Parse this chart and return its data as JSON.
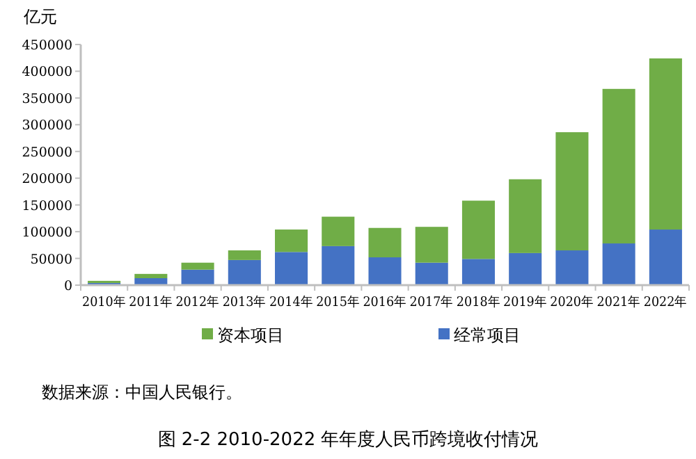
{
  "chart_data": {
    "type": "bar",
    "stacked": true,
    "title": "图 2-2 2010-2022 年年度人民币跨境收付情况",
    "ylabel": "亿元",
    "categories": [
      "2010年",
      "2011年",
      "2012年",
      "2013年",
      "2014年",
      "2015年",
      "2016年",
      "2017年",
      "2018年",
      "2019年",
      "2020年",
      "2021年",
      "2022年"
    ],
    "series": [
      {
        "name": "经常项目",
        "color": "#4472c4",
        "values": [
          4000,
          13000,
          29000,
          47000,
          62000,
          73000,
          52000,
          42000,
          49000,
          60000,
          65000,
          78000,
          104000
        ]
      },
      {
        "name": "资本项目",
        "color": "#70ad47",
        "values": [
          4000,
          8000,
          13000,
          18000,
          42000,
          55000,
          55000,
          67000,
          109000,
          138000,
          221000,
          289000,
          320000
        ]
      }
    ],
    "ylim": [
      0,
      450000
    ],
    "yticks": [
      0,
      50000,
      100000,
      150000,
      200000,
      250000,
      300000,
      350000,
      400000,
      450000
    ],
    "grid": false,
    "legend": "bottom",
    "annotations": [
      "数据来源：中国人民银行。"
    ]
  }
}
